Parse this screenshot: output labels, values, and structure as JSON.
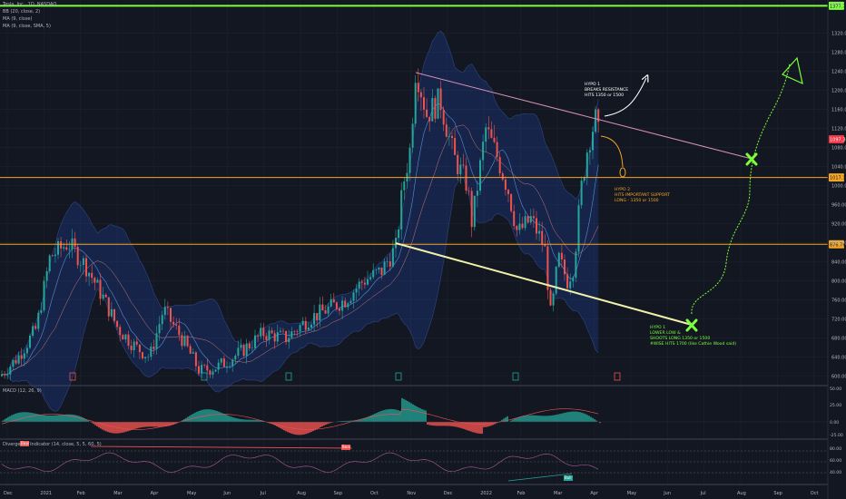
{
  "header": {
    "symbol_line": "Tesla, Inc., 1D, NASDAQ",
    "indicator_bb": "BB (20, close, 2)",
    "indicator_ma1": "MA (9, close)",
    "indicator_ma2": "MA (9, close, SMA, 5)",
    "currency": "USD"
  },
  "chart_data": {
    "type": "candlestick",
    "main": {
      "y_ticks": [
        1320,
        1280,
        1240,
        1200,
        1160,
        1120,
        1080,
        1040,
        1000,
        960,
        920,
        880,
        840,
        800,
        760,
        720,
        680,
        640,
        600
      ],
      "ylim": [
        580,
        1390
      ],
      "price_labels": [
        {
          "label": "1377.77",
          "value": 1377.77,
          "color": "#7cff3a"
        },
        {
          "label": "1097.36",
          "value": 1097.36,
          "color": "#f23645"
        },
        {
          "label": "1017.10",
          "value": 1017.1,
          "color": "#f5a623"
        },
        {
          "label": "876.76",
          "value": 876.76,
          "color": "#f5a623"
        }
      ],
      "levels": [
        {
          "name": "resistance-top",
          "value": 1377.77,
          "color": "#7cff3a"
        },
        {
          "name": "support-1017",
          "value": 1017.1,
          "color": "#f5a623"
        },
        {
          "name": "support-876",
          "value": 876.76,
          "color": "#f5a623"
        }
      ],
      "annotations": [
        {
          "id": "hypo1-upper",
          "lines": [
            "HYPO 1",
            "BREAKS RESISTANCE",
            "HITS 1350 or 1500"
          ],
          "color": "#ffffff"
        },
        {
          "id": "hypo2",
          "lines": [
            "HYPO 2",
            "HITS IMPORTANT SUPPORT",
            "LONG - 1350 or 1500"
          ],
          "color": "#f5a623"
        },
        {
          "id": "hypo1-lower",
          "lines": [
            "HYPO 1",
            "LOWER LOW &",
            "SHOOTS LONG 1350 or 1500",
            "#WISE HITS 1700 (like Cathie Wood said)"
          ],
          "color": "#7cff3a"
        }
      ]
    },
    "macd": {
      "title": "MACD (12, 26, 9)",
      "y_ticks": [
        "50.00",
        "25.00",
        "0.00",
        "-25.00"
      ]
    },
    "divergence": {
      "title": "Divergence Indicator (14, close, 5, 5, 60, 5)",
      "y_ticks": [
        "80.00",
        "60.00",
        "40.00"
      ],
      "labels": [
        "Bear",
        "Bear",
        "Bull"
      ]
    },
    "x_ticks": [
      "Dec",
      "2021",
      "Feb",
      "Mar",
      "Apr",
      "May",
      "Jun",
      "Jul",
      "Aug",
      "Sep",
      "Oct",
      "Nov",
      "Dec",
      "2022",
      "Feb",
      "Mar",
      "Apr",
      "May",
      "Jun",
      "Jul",
      "Aug",
      "Sep",
      "Oct"
    ]
  },
  "colors": {
    "background": "#131722",
    "up": "#26a69a",
    "down": "#ef5350",
    "band": "#2962ff"
  }
}
